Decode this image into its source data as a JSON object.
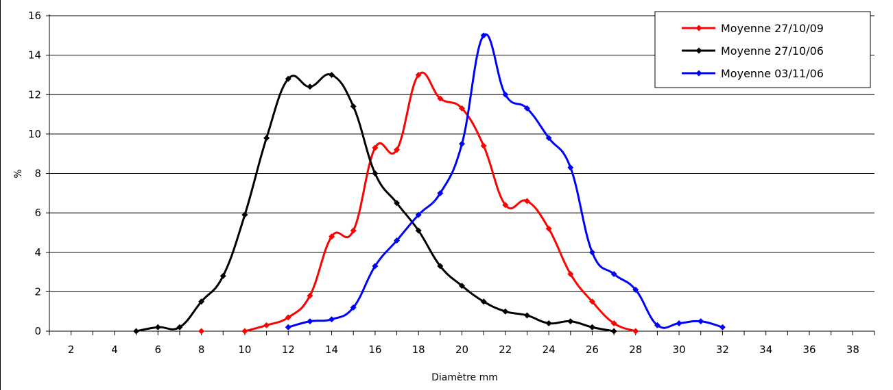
{
  "chart_data": {
    "type": "line",
    "title": "",
    "xlabel": "Diamètre mm",
    "ylabel": "%",
    "xlim": [
      1,
      39
    ],
    "ylim": [
      0,
      16
    ],
    "x_ticks": [
      2,
      4,
      6,
      8,
      10,
      12,
      14,
      16,
      18,
      20,
      22,
      24,
      26,
      28,
      30,
      32,
      34,
      36,
      38
    ],
    "y_ticks": [
      0,
      2,
      4,
      6,
      8,
      10,
      12,
      14,
      16
    ],
    "grid": "horizontal",
    "legend_position": "top-right",
    "series": [
      {
        "name": "Moyenne 27/10/09",
        "color": "#ff0000",
        "marker": "diamond",
        "points": [
          [
            8,
            0
          ],
          [
            10,
            0
          ],
          [
            11,
            0.3
          ],
          [
            12,
            0.7
          ],
          [
            13,
            1.8
          ],
          [
            14,
            4.8
          ],
          [
            15,
            5.1
          ],
          [
            16,
            9.3
          ],
          [
            17,
            9.2
          ],
          [
            18,
            13.0
          ],
          [
            19,
            11.8
          ],
          [
            20,
            11.3
          ],
          [
            21,
            9.4
          ],
          [
            22,
            6.4
          ],
          [
            23,
            6.6
          ],
          [
            24,
            5.2
          ],
          [
            25,
            2.9
          ],
          [
            26,
            1.5
          ],
          [
            27,
            0.4
          ],
          [
            28,
            0
          ]
        ]
      },
      {
        "name": "Moyenne 27/10/06",
        "color": "#000000",
        "marker": "diamond",
        "points": [
          [
            5,
            0
          ],
          [
            6,
            0.2
          ],
          [
            7,
            0.2
          ],
          [
            8,
            1.5
          ],
          [
            9,
            2.8
          ],
          [
            10,
            5.9
          ],
          [
            11,
            9.8
          ],
          [
            12,
            12.8
          ],
          [
            13,
            12.4
          ],
          [
            14,
            13.0
          ],
          [
            15,
            11.4
          ],
          [
            16,
            8.0
          ],
          [
            17,
            6.5
          ],
          [
            18,
            5.1
          ],
          [
            19,
            3.3
          ],
          [
            20,
            2.3
          ],
          [
            21,
            1.5
          ],
          [
            22,
            1.0
          ],
          [
            23,
            0.8
          ],
          [
            24,
            0.4
          ],
          [
            25,
            0.5
          ],
          [
            26,
            0.2
          ],
          [
            27,
            0
          ]
        ]
      },
      {
        "name": "Moyenne 03/11/06",
        "color": "#0000ff",
        "marker": "diamond",
        "points": [
          [
            12,
            0.2
          ],
          [
            13,
            0.5
          ],
          [
            14,
            0.6
          ],
          [
            15,
            1.2
          ],
          [
            16,
            3.3
          ],
          [
            17,
            4.6
          ],
          [
            18,
            5.9
          ],
          [
            19,
            7.0
          ],
          [
            20,
            9.5
          ],
          [
            21,
            15.0
          ],
          [
            22,
            12.0
          ],
          [
            23,
            11.3
          ],
          [
            24,
            9.8
          ],
          [
            25,
            8.3
          ],
          [
            26,
            4.0
          ],
          [
            27,
            2.9
          ],
          [
            28,
            2.1
          ],
          [
            29,
            0.3
          ],
          [
            30,
            0.4
          ],
          [
            31,
            0.5
          ],
          [
            32,
            0.2
          ]
        ]
      }
    ]
  }
}
